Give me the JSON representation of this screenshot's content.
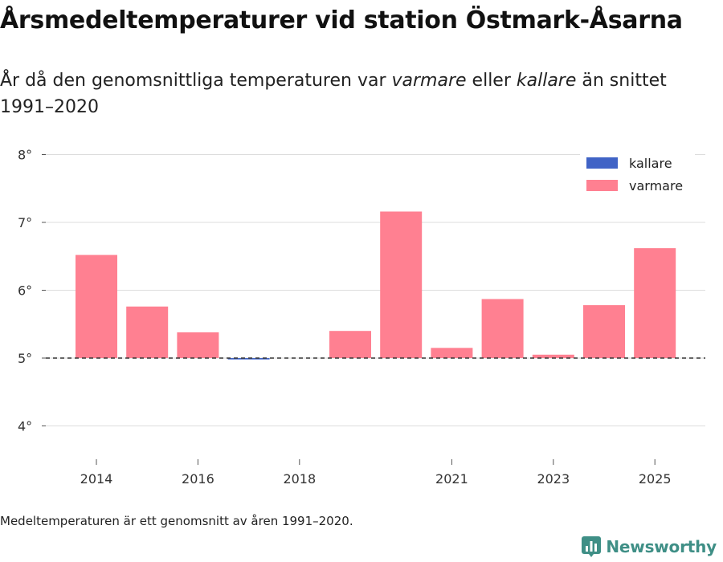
{
  "title": "Årsmedeltemperaturer vid station Östmark-Åsarna",
  "subtitle": {
    "prefix": "År då den genomsnittliga temperaturen var ",
    "warmer": "varmare",
    "middle": " eller ",
    "colder": "kallare",
    "suffix": " än snittet 1991–2020"
  },
  "footnote": "Medeltemperaturen är ett genomsnitt av åren 1991–2020.",
  "brand": {
    "name": "Newsworthy",
    "icon": "bar-chart-icon"
  },
  "colors": {
    "warmer": "#ff8091",
    "colder": "#4063c6",
    "grid": "#dddddd",
    "baseline": "#333333",
    "brand": "#3f8f86"
  },
  "chart_data": {
    "type": "bar",
    "title": "Årsmedeltemperaturer vid station Östmark-Åsarna",
    "baseline": 5.0,
    "ylim": [
      3.6,
      8.2
    ],
    "yticks": [
      4,
      5,
      6,
      7,
      8
    ],
    "ytick_labels": [
      "4°",
      "5°",
      "6°",
      "7°",
      "8°"
    ],
    "xlim": [
      2013,
      2026
    ],
    "xticks": [
      2014,
      2016,
      2018,
      2021,
      2023,
      2025
    ],
    "xtick_labels": [
      "2014",
      "2016",
      "2018",
      "2021",
      "2023",
      "2025"
    ],
    "legend": [
      "kallare",
      "varmare"
    ],
    "bars": [
      {
        "year": 2014,
        "value": 6.52,
        "category": "varmare"
      },
      {
        "year": 2015,
        "value": 5.76,
        "category": "varmare"
      },
      {
        "year": 2016,
        "value": 5.38,
        "category": "varmare"
      },
      {
        "year": 2017,
        "value": 4.98,
        "category": "kallare"
      },
      {
        "year": 2019,
        "value": 5.4,
        "category": "varmare"
      },
      {
        "year": 2020,
        "value": 7.16,
        "category": "varmare"
      },
      {
        "year": 2021,
        "value": 5.15,
        "category": "varmare"
      },
      {
        "year": 2022,
        "value": 5.87,
        "category": "varmare"
      },
      {
        "year": 2023,
        "value": 5.05,
        "category": "varmare"
      },
      {
        "year": 2024,
        "value": 5.78,
        "category": "varmare"
      },
      {
        "year": 2025,
        "value": 6.62,
        "category": "varmare"
      }
    ]
  }
}
